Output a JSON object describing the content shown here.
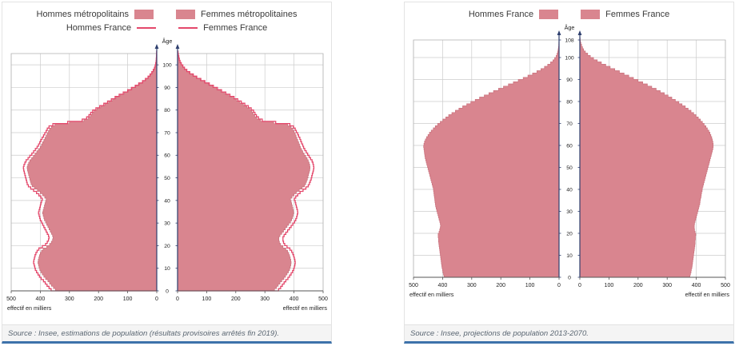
{
  "colors": {
    "fill": "#d9858f",
    "fill_edge": "#c9707c",
    "outline": "#e4486b",
    "axis": "#2e3f6e",
    "grid": "#cccccc",
    "plot_border": "#b5b5b5",
    "accent_border": "#3d72aa",
    "source_bg": "#f4f4f4"
  },
  "chart_data": [
    {
      "type": "bar",
      "subtype": "population_pyramid",
      "age_axis_label": "Âge",
      "x_axis_label": "effectif en milliers",
      "x_max": 500,
      "x_ticks": [
        0,
        100,
        200,
        300,
        400,
        500
      ],
      "max_age": 105,
      "age_ticks": [
        0,
        10,
        20,
        30,
        40,
        50,
        60,
        70,
        80,
        90,
        100
      ],
      "source": "Source : Insee, estimations de population (résultats provisoires arrêtés fin 2019).",
      "series": [
        {
          "name": "Hommes métropolitains",
          "side": "left",
          "style": "fill",
          "values": [
            348,
            355,
            362,
            368,
            374,
            382,
            388,
            393,
            398,
            402,
            404,
            406,
            408,
            407,
            405,
            403,
            400,
            396,
            390,
            378,
            368,
            362,
            358,
            356,
            358,
            362,
            366,
            370,
            374,
            378,
            382,
            386,
            388,
            390,
            392,
            390,
            388,
            386,
            384,
            382,
            380,
            385,
            392,
            400,
            410,
            420,
            428,
            432,
            434,
            436,
            438,
            440,
            442,
            444,
            445,
            443,
            440,
            436,
            430,
            424,
            418,
            412,
            406,
            400,
            396,
            392,
            388,
            384,
            380,
            376,
            372,
            368,
            362,
            350,
            300,
            250,
            235,
            228,
            222,
            215,
            205,
            192,
            178,
            165,
            152,
            140,
            126,
            112,
            98,
            85,
            72,
            60,
            48,
            38,
            29,
            22,
            16,
            11,
            7,
            5,
            3,
            2,
            1.5,
            1,
            0.7,
            0.4
          ]
        },
        {
          "name": "Femmes métropolitaines",
          "side": "right",
          "style": "fill",
          "values": [
            333,
            340,
            346,
            352,
            358,
            365,
            371,
            376,
            381,
            385,
            387,
            389,
            390,
            389,
            387,
            385,
            382,
            378,
            372,
            362,
            354,
            350,
            348,
            348,
            352,
            358,
            364,
            370,
            376,
            382,
            388,
            392,
            395,
            397,
            399,
            398,
            396,
            394,
            392,
            390,
            388,
            393,
            400,
            408,
            418,
            428,
            436,
            440,
            443,
            446,
            448,
            450,
            452,
            454,
            455,
            454,
            452,
            449,
            445,
            440,
            435,
            430,
            426,
            422,
            419,
            416,
            413,
            410,
            407,
            404,
            400,
            396,
            390,
            378,
            330,
            285,
            272,
            265,
            260,
            255,
            248,
            238,
            226,
            214,
            202,
            190,
            176,
            162,
            148,
            134,
            120,
            106,
            92,
            78,
            64,
            52,
            41,
            31,
            23,
            17,
            12,
            8,
            5.5,
            4,
            2.5,
            1.5
          ]
        },
        {
          "name": "Hommes France",
          "side": "left",
          "style": "line",
          "values": [
            363,
            370,
            377,
            383,
            389,
            397,
            403,
            408,
            413,
            417,
            419,
            421,
            423,
            422,
            420,
            418,
            415,
            411,
            405,
            393,
            382,
            376,
            372,
            370,
            372,
            376,
            380,
            384,
            388,
            392,
            396,
            400,
            402,
            404,
            406,
            404,
            402,
            400,
            398,
            396,
            393,
            398,
            405,
            413,
            423,
            433,
            441,
            445,
            447,
            449,
            451,
            453,
            455,
            457,
            458,
            456,
            453,
            449,
            442,
            436,
            429,
            423,
            417,
            411,
            406,
            402,
            398,
            394,
            389,
            385,
            380,
            376,
            370,
            357,
            306,
            256,
            241,
            233,
            227,
            220,
            209,
            196,
            182,
            169,
            156,
            143,
            129,
            115,
            100,
            87,
            74,
            62,
            49,
            39,
            30,
            23,
            17,
            12,
            8,
            5.5,
            3.5,
            2.3,
            1.7,
            1.2,
            0.8,
            0.5
          ]
        },
        {
          "name": "Femmes France",
          "side": "right",
          "style": "line",
          "values": [
            347,
            354,
            360,
            366,
            372,
            379,
            385,
            390,
            395,
            399,
            401,
            403,
            404,
            403,
            401,
            399,
            396,
            392,
            386,
            376,
            368,
            364,
            362,
            362,
            366,
            372,
            378,
            384,
            390,
            396,
            402,
            406,
            409,
            411,
            413,
            412,
            410,
            408,
            406,
            404,
            401,
            406,
            413,
            421,
            431,
            441,
            449,
            453,
            456,
            459,
            461,
            463,
            465,
            467,
            468,
            467,
            465,
            462,
            457,
            452,
            447,
            442,
            437,
            433,
            430,
            426,
            423,
            420,
            416,
            413,
            408,
            404,
            398,
            386,
            337,
            291,
            278,
            271,
            266,
            261,
            253,
            243,
            231,
            219,
            207,
            194,
            180,
            166,
            151,
            137,
            123,
            109,
            94,
            80,
            66,
            54,
            42,
            32,
            24,
            18,
            12.5,
            8.5,
            6,
            4.3,
            2.8,
            1.7
          ]
        }
      ]
    },
    {
      "type": "bar",
      "subtype": "population_pyramid",
      "age_axis_label": "Âge",
      "x_axis_label": "effectif en milliers",
      "x_max": 500,
      "x_ticks": [
        0,
        100,
        200,
        300,
        400,
        500
      ],
      "max_age": 108,
      "age_ticks": [
        0,
        10,
        20,
        30,
        40,
        50,
        60,
        70,
        80,
        90,
        100,
        108
      ],
      "source": "Source : Insee, projections de population 2013-2070.",
      "series": [
        {
          "name": "Hommes France",
          "side": "left",
          "style": "fill",
          "values": [
            395,
            397,
            399,
            400,
            402,
            403,
            404,
            405,
            406,
            407,
            408,
            409,
            410,
            411,
            412,
            413,
            414,
            414,
            415,
            415,
            412,
            410,
            408,
            407,
            408,
            410,
            412,
            414,
            416,
            418,
            420,
            422,
            424,
            425,
            426,
            427,
            428,
            429,
            430,
            431,
            432,
            434,
            436,
            438,
            440,
            442,
            444,
            446,
            448,
            450,
            452,
            454,
            456,
            458,
            460,
            461,
            462,
            463,
            464,
            465,
            464,
            462,
            459,
            455,
            450,
            445,
            439,
            432,
            425,
            417,
            408,
            399,
            389,
            379,
            368,
            356,
            344,
            331,
            317,
            303,
            288,
            273,
            257,
            241,
            225,
            208,
            191,
            174,
            157,
            140,
            123,
            107,
            91,
            76,
            62,
            50,
            39,
            29,
            21,
            15,
            10,
            7,
            4.5,
            3,
            2,
            1.2,
            0.7,
            0.4,
            0.2
          ]
        },
        {
          "name": "Femmes France",
          "side": "right",
          "style": "fill",
          "values": [
            378,
            380,
            382,
            383,
            385,
            386,
            387,
            388,
            389,
            390,
            391,
            392,
            393,
            394,
            395,
            396,
            396,
            397,
            397,
            398,
            396,
            394,
            393,
            393,
            394,
            396,
            398,
            400,
            402,
            404,
            406,
            408,
            410,
            412,
            413,
            414,
            416,
            417,
            418,
            420,
            421,
            423,
            425,
            427,
            429,
            431,
            433,
            435,
            437,
            439,
            441,
            443,
            445,
            447,
            449,
            451,
            453,
            455,
            457,
            458,
            458,
            457,
            455,
            453,
            450,
            447,
            443,
            438,
            433,
            427,
            421,
            414,
            407,
            399,
            391,
            382,
            372,
            362,
            351,
            340,
            328,
            316,
            303,
            290,
            276,
            262,
            247,
            232,
            216,
            200,
            184,
            168,
            152,
            136,
            120,
            104,
            89,
            74,
            60,
            47,
            36,
            27,
            19,
            13,
            9,
            6,
            3.5,
            2,
            1
          ]
        }
      ]
    }
  ]
}
